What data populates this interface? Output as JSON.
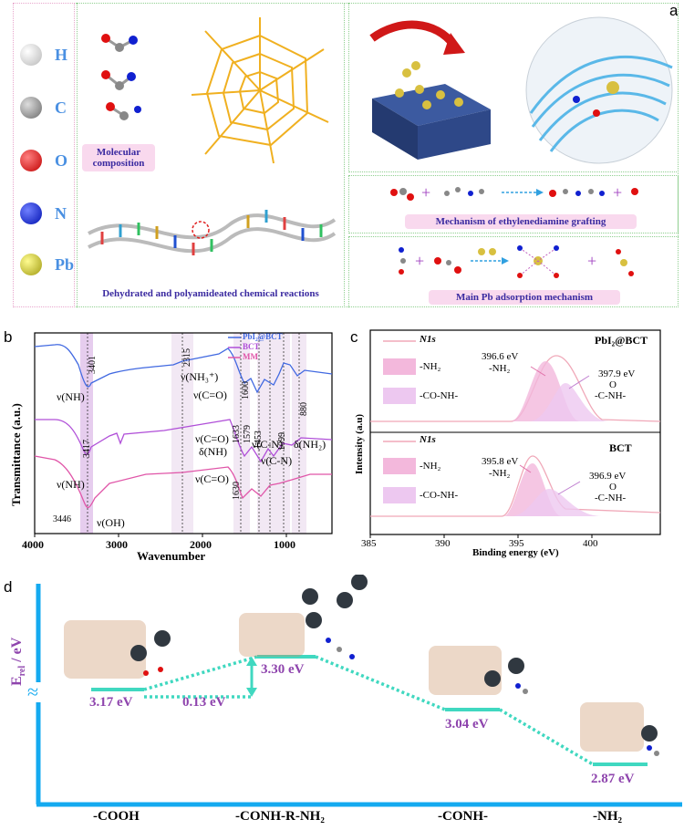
{
  "panel_a": {
    "letter": "a",
    "elements": [
      {
        "symbol": "H",
        "color": "#e8e8e8"
      },
      {
        "symbol": "C",
        "color": "#9a9a9a"
      },
      {
        "symbol": "O",
        "color": "#e01010"
      },
      {
        "symbol": "N",
        "color": "#1020d0"
      },
      {
        "symbol": "Pb",
        "color": "#c8c020"
      }
    ],
    "molecular_composition": "Molecular composition",
    "dehydrated_caption": "Dehydrated and polyamideated chemical reactions",
    "mechanism_grafting": "Mechanism of ethylenediamine grafting",
    "pb_adsorption": "Main Pb adsorption mechanism"
  },
  "panel_b": {
    "letter": "b",
    "ylabel": "Transmittance (a.u.)",
    "xlabel": "Wavenumber",
    "xticks": [
      "4000",
      "3000",
      "2000",
      "1000"
    ],
    "legend": [
      "PbI₂@BCT",
      "BCT",
      "MM"
    ],
    "legend_colors": [
      "#4169e1",
      "#b04fd8",
      "#e055a8"
    ],
    "annotations": {
      "p3401": "3401",
      "p3417": "3417",
      "p3446": "3446",
      "p2315": "2315",
      "p1600": "1600",
      "p1633": "1633",
      "p1579": "1579",
      "p1453": "1453",
      "p1099": "1099",
      "p880": "880",
      "p1630": "1630",
      "vNH1": "ν(NH)",
      "vNH2": "ν(NH)",
      "vOH": "ν(OH)",
      "vNH3plus": "ν(NH₃⁺)",
      "vCO1": "ν(C=O)",
      "vCO2": "ν(C=O)",
      "dNH": "δ(NH)",
      "vCN1": "ν(C-N)",
      "vCN2": "ν(C-N)",
      "dNH2": "δ(NH₂)",
      "vCO3": "ν(C=O)"
    }
  },
  "panel_c": {
    "letter": "c",
    "ylabel": "Intensity (a.u)",
    "xlabel": "Binding energy (eV)",
    "xticks": [
      "385",
      "390",
      "395",
      "400"
    ],
    "top": {
      "title": "PbI₂@BCT",
      "legend": [
        "N1s",
        "-NH₂",
        "-CO-NH-"
      ],
      "peak1_ev": "396.6 eV",
      "peak1_group": "-NH₂",
      "peak2_ev": "397.9 eV",
      "peak2_group": "-C-NH-",
      "peak2_o": "O"
    },
    "bottom": {
      "title": "BCT",
      "legend": [
        "N1s",
        "-NH₂",
        "-CO-NH-"
      ],
      "peak1_ev": "395.8 eV",
      "peak1_group": "-NH₂",
      "peak2_ev": "396.9 eV",
      "peak2_group": "-C-NH-",
      "peak2_o": "O"
    }
  },
  "panel_d": {
    "letter": "d",
    "ylabel": "E",
    "ylabel_sub": "rel",
    "ylabel_unit": " / eV",
    "levels": [
      {
        "label": "-COOH",
        "energy": "3.17 eV"
      },
      {
        "label": "-CONH-R-NH₂",
        "energy": "3.30 eV"
      },
      {
        "label": "-CONH-",
        "energy": "3.04 eV"
      },
      {
        "label": "-NH₂",
        "energy": "2.87 eV"
      }
    ],
    "barrier": "0.13 eV"
  }
}
